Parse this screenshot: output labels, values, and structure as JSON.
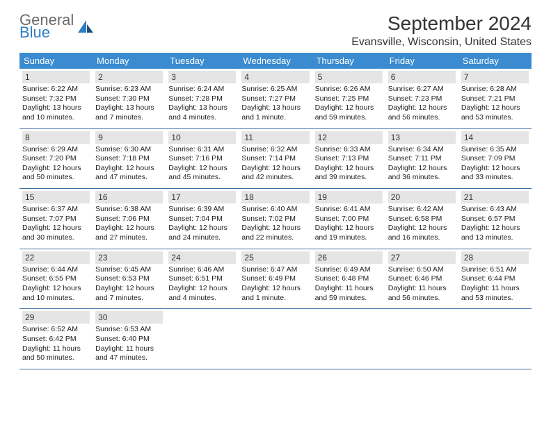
{
  "logo": {
    "word1": "General",
    "word2": "Blue"
  },
  "title": "September 2024",
  "location": "Evansville, Wisconsin, United States",
  "colors": {
    "header_bg": "#3a8bcf",
    "header_text": "#ffffff",
    "row_divider": "#3a6fa0",
    "daynum_bg": "#e5e5e5",
    "logo_gray": "#6b6b6b",
    "logo_blue": "#2e7cc0",
    "text": "#222222"
  },
  "day_headers": [
    "Sunday",
    "Monday",
    "Tuesday",
    "Wednesday",
    "Thursday",
    "Friday",
    "Saturday"
  ],
  "weeks": [
    [
      {
        "n": "1",
        "sr": "Sunrise: 6:22 AM",
        "ss": "Sunset: 7:32 PM",
        "dl": "Daylight: 13 hours and 10 minutes."
      },
      {
        "n": "2",
        "sr": "Sunrise: 6:23 AM",
        "ss": "Sunset: 7:30 PM",
        "dl": "Daylight: 13 hours and 7 minutes."
      },
      {
        "n": "3",
        "sr": "Sunrise: 6:24 AM",
        "ss": "Sunset: 7:28 PM",
        "dl": "Daylight: 13 hours and 4 minutes."
      },
      {
        "n": "4",
        "sr": "Sunrise: 6:25 AM",
        "ss": "Sunset: 7:27 PM",
        "dl": "Daylight: 13 hours and 1 minute."
      },
      {
        "n": "5",
        "sr": "Sunrise: 6:26 AM",
        "ss": "Sunset: 7:25 PM",
        "dl": "Daylight: 12 hours and 59 minutes."
      },
      {
        "n": "6",
        "sr": "Sunrise: 6:27 AM",
        "ss": "Sunset: 7:23 PM",
        "dl": "Daylight: 12 hours and 56 minutes."
      },
      {
        "n": "7",
        "sr": "Sunrise: 6:28 AM",
        "ss": "Sunset: 7:21 PM",
        "dl": "Daylight: 12 hours and 53 minutes."
      }
    ],
    [
      {
        "n": "8",
        "sr": "Sunrise: 6:29 AM",
        "ss": "Sunset: 7:20 PM",
        "dl": "Daylight: 12 hours and 50 minutes."
      },
      {
        "n": "9",
        "sr": "Sunrise: 6:30 AM",
        "ss": "Sunset: 7:18 PM",
        "dl": "Daylight: 12 hours and 47 minutes."
      },
      {
        "n": "10",
        "sr": "Sunrise: 6:31 AM",
        "ss": "Sunset: 7:16 PM",
        "dl": "Daylight: 12 hours and 45 minutes."
      },
      {
        "n": "11",
        "sr": "Sunrise: 6:32 AM",
        "ss": "Sunset: 7:14 PM",
        "dl": "Daylight: 12 hours and 42 minutes."
      },
      {
        "n": "12",
        "sr": "Sunrise: 6:33 AM",
        "ss": "Sunset: 7:13 PM",
        "dl": "Daylight: 12 hours and 39 minutes."
      },
      {
        "n": "13",
        "sr": "Sunrise: 6:34 AM",
        "ss": "Sunset: 7:11 PM",
        "dl": "Daylight: 12 hours and 36 minutes."
      },
      {
        "n": "14",
        "sr": "Sunrise: 6:35 AM",
        "ss": "Sunset: 7:09 PM",
        "dl": "Daylight: 12 hours and 33 minutes."
      }
    ],
    [
      {
        "n": "15",
        "sr": "Sunrise: 6:37 AM",
        "ss": "Sunset: 7:07 PM",
        "dl": "Daylight: 12 hours and 30 minutes."
      },
      {
        "n": "16",
        "sr": "Sunrise: 6:38 AM",
        "ss": "Sunset: 7:06 PM",
        "dl": "Daylight: 12 hours and 27 minutes."
      },
      {
        "n": "17",
        "sr": "Sunrise: 6:39 AM",
        "ss": "Sunset: 7:04 PM",
        "dl": "Daylight: 12 hours and 24 minutes."
      },
      {
        "n": "18",
        "sr": "Sunrise: 6:40 AM",
        "ss": "Sunset: 7:02 PM",
        "dl": "Daylight: 12 hours and 22 minutes."
      },
      {
        "n": "19",
        "sr": "Sunrise: 6:41 AM",
        "ss": "Sunset: 7:00 PM",
        "dl": "Daylight: 12 hours and 19 minutes."
      },
      {
        "n": "20",
        "sr": "Sunrise: 6:42 AM",
        "ss": "Sunset: 6:58 PM",
        "dl": "Daylight: 12 hours and 16 minutes."
      },
      {
        "n": "21",
        "sr": "Sunrise: 6:43 AM",
        "ss": "Sunset: 6:57 PM",
        "dl": "Daylight: 12 hours and 13 minutes."
      }
    ],
    [
      {
        "n": "22",
        "sr": "Sunrise: 6:44 AM",
        "ss": "Sunset: 6:55 PM",
        "dl": "Daylight: 12 hours and 10 minutes."
      },
      {
        "n": "23",
        "sr": "Sunrise: 6:45 AM",
        "ss": "Sunset: 6:53 PM",
        "dl": "Daylight: 12 hours and 7 minutes."
      },
      {
        "n": "24",
        "sr": "Sunrise: 6:46 AM",
        "ss": "Sunset: 6:51 PM",
        "dl": "Daylight: 12 hours and 4 minutes."
      },
      {
        "n": "25",
        "sr": "Sunrise: 6:47 AM",
        "ss": "Sunset: 6:49 PM",
        "dl": "Daylight: 12 hours and 1 minute."
      },
      {
        "n": "26",
        "sr": "Sunrise: 6:49 AM",
        "ss": "Sunset: 6:48 PM",
        "dl": "Daylight: 11 hours and 59 minutes."
      },
      {
        "n": "27",
        "sr": "Sunrise: 6:50 AM",
        "ss": "Sunset: 6:46 PM",
        "dl": "Daylight: 11 hours and 56 minutes."
      },
      {
        "n": "28",
        "sr": "Sunrise: 6:51 AM",
        "ss": "Sunset: 6:44 PM",
        "dl": "Daylight: 11 hours and 53 minutes."
      }
    ],
    [
      {
        "n": "29",
        "sr": "Sunrise: 6:52 AM",
        "ss": "Sunset: 6:42 PM",
        "dl": "Daylight: 11 hours and 50 minutes."
      },
      {
        "n": "30",
        "sr": "Sunrise: 6:53 AM",
        "ss": "Sunset: 6:40 PM",
        "dl": "Daylight: 11 hours and 47 minutes."
      },
      null,
      null,
      null,
      null,
      null
    ]
  ]
}
